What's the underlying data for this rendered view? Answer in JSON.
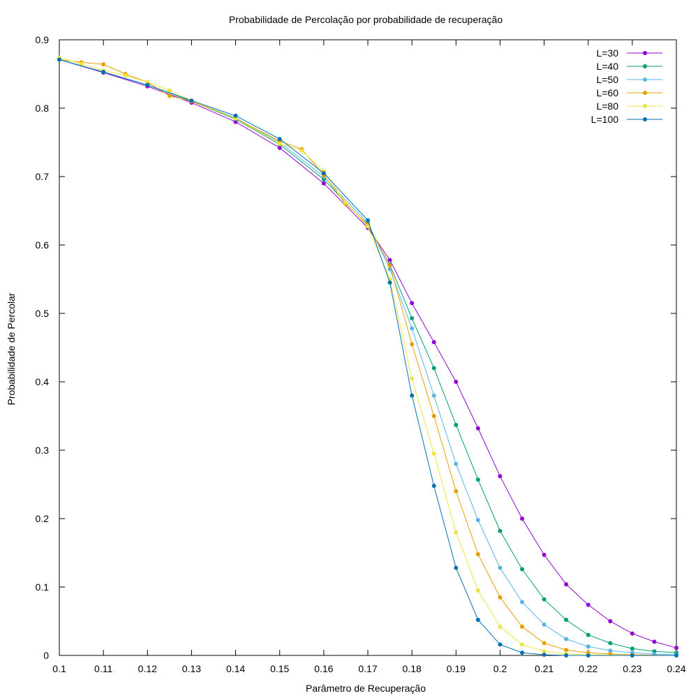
{
  "chart_data": {
    "type": "line",
    "title": "Probabilidade de Percolação por probabilidade de recuperação",
    "xlabel": "Parâmetro de Recuperação",
    "ylabel": "Probabilidade de Percolar",
    "xlim": [
      0.1,
      0.24
    ],
    "ylim": [
      0,
      0.9
    ],
    "xticks": [
      "0.1",
      "0.11",
      "0.12",
      "0.13",
      "0.14",
      "0.15",
      "0.16",
      "0.17",
      "0.18",
      "0.19",
      "0.2",
      "0.21",
      "0.22",
      "0.23",
      "0.24"
    ],
    "yticks": [
      "0",
      "0.1",
      "0.2",
      "0.3",
      "0.4",
      "0.5",
      "0.6",
      "0.7",
      "0.8",
      "0.9"
    ],
    "grid": false,
    "legend_position": "top-right",
    "series": [
      {
        "name": "L=30",
        "color": "#9400d3",
        "points": [
          [
            0.1,
            0.871
          ],
          [
            0.11,
            0.852
          ],
          [
            0.12,
            0.832
          ],
          [
            0.13,
            0.808
          ],
          [
            0.14,
            0.78
          ],
          [
            0.15,
            0.742
          ],
          [
            0.16,
            0.69
          ],
          [
            0.17,
            0.625
          ],
          [
            0.175,
            0.578
          ],
          [
            0.18,
            0.515
          ],
          [
            0.185,
            0.458
          ],
          [
            0.19,
            0.4
          ],
          [
            0.195,
            0.332
          ],
          [
            0.2,
            0.262
          ],
          [
            0.205,
            0.2
          ],
          [
            0.21,
            0.147
          ],
          [
            0.215,
            0.104
          ],
          [
            0.22,
            0.074
          ],
          [
            0.225,
            0.05
          ],
          [
            0.23,
            0.032
          ],
          [
            0.235,
            0.02
          ],
          [
            0.24,
            0.011
          ]
        ]
      },
      {
        "name": "L=40",
        "color": "#009e73",
        "points": [
          [
            0.1,
            0.871
          ],
          [
            0.11,
            0.853
          ],
          [
            0.12,
            0.834
          ],
          [
            0.13,
            0.81
          ],
          [
            0.14,
            0.784
          ],
          [
            0.15,
            0.747
          ],
          [
            0.16,
            0.696
          ],
          [
            0.17,
            0.628
          ],
          [
            0.175,
            0.571
          ],
          [
            0.18,
            0.493
          ],
          [
            0.185,
            0.42
          ],
          [
            0.19,
            0.337
          ],
          [
            0.195,
            0.257
          ],
          [
            0.2,
            0.182
          ],
          [
            0.205,
            0.126
          ],
          [
            0.21,
            0.082
          ],
          [
            0.215,
            0.052
          ],
          [
            0.22,
            0.03
          ],
          [
            0.225,
            0.018
          ],
          [
            0.23,
            0.01
          ],
          [
            0.235,
            0.006
          ],
          [
            0.24,
            0.004
          ]
        ]
      },
      {
        "name": "L=50",
        "color": "#56b4e9",
        "points": [
          [
            0.1,
            0.871
          ],
          [
            0.11,
            0.853
          ],
          [
            0.12,
            0.834
          ],
          [
            0.13,
            0.811
          ],
          [
            0.14,
            0.786
          ],
          [
            0.15,
            0.75
          ],
          [
            0.16,
            0.7
          ],
          [
            0.17,
            0.632
          ],
          [
            0.175,
            0.565
          ],
          [
            0.18,
            0.478
          ],
          [
            0.185,
            0.38
          ],
          [
            0.19,
            0.28
          ],
          [
            0.195,
            0.198
          ],
          [
            0.2,
            0.128
          ],
          [
            0.205,
            0.078
          ],
          [
            0.21,
            0.045
          ],
          [
            0.215,
            0.024
          ],
          [
            0.22,
            0.013
          ],
          [
            0.225,
            0.007
          ],
          [
            0.23,
            0.004
          ],
          [
            0.235,
            0.002
          ],
          [
            0.24,
            0.001
          ]
        ]
      },
      {
        "name": "L=60",
        "color": "#e69f00",
        "points": [
          [
            0.1,
            0.871
          ],
          [
            0.105,
            0.867
          ],
          [
            0.11,
            0.864
          ],
          [
            0.115,
            0.85
          ],
          [
            0.12,
            0.838
          ],
          [
            0.125,
            0.818
          ],
          [
            0.13,
            0.81
          ],
          [
            0.14,
            0.785
          ],
          [
            0.15,
            0.752
          ],
          [
            0.155,
            0.74
          ],
          [
            0.16,
            0.702
          ],
          [
            0.165,
            0.66
          ],
          [
            0.17,
            0.63
          ],
          [
            0.175,
            0.57
          ],
          [
            0.18,
            0.455
          ],
          [
            0.185,
            0.35
          ],
          [
            0.19,
            0.24
          ],
          [
            0.195,
            0.148
          ],
          [
            0.2,
            0.085
          ],
          [
            0.205,
            0.042
          ],
          [
            0.21,
            0.018
          ],
          [
            0.215,
            0.008
          ],
          [
            0.22,
            0.004
          ],
          [
            0.225,
            0.002
          ],
          [
            0.23,
            0.001
          ],
          [
            0.24,
            0.0
          ]
        ]
      },
      {
        "name": "L=80",
        "color": "#f0e442",
        "points": [
          [
            0.1,
            0.874
          ],
          [
            0.105,
            0.865
          ],
          [
            0.11,
            0.855
          ],
          [
            0.115,
            0.848
          ],
          [
            0.12,
            0.838
          ],
          [
            0.125,
            0.826
          ],
          [
            0.13,
            0.811
          ],
          [
            0.14,
            0.785
          ],
          [
            0.15,
            0.748
          ],
          [
            0.155,
            0.738
          ],
          [
            0.16,
            0.708
          ],
          [
            0.165,
            0.662
          ],
          [
            0.17,
            0.627
          ],
          [
            0.175,
            0.55
          ],
          [
            0.18,
            0.405
          ],
          [
            0.185,
            0.295
          ],
          [
            0.19,
            0.18
          ],
          [
            0.195,
            0.095
          ],
          [
            0.2,
            0.042
          ],
          [
            0.205,
            0.016
          ],
          [
            0.21,
            0.006
          ],
          [
            0.215,
            0.002
          ],
          [
            0.22,
            0.001
          ],
          [
            0.23,
            0.0
          ],
          [
            0.24,
            0.0
          ]
        ]
      },
      {
        "name": "L=100",
        "color": "#0072b2",
        "points": [
          [
            0.1,
            0.871
          ],
          [
            0.11,
            0.853
          ],
          [
            0.12,
            0.834
          ],
          [
            0.13,
            0.811
          ],
          [
            0.14,
            0.789
          ],
          [
            0.15,
            0.755
          ],
          [
            0.16,
            0.705
          ],
          [
            0.17,
            0.636
          ],
          [
            0.175,
            0.545
          ],
          [
            0.18,
            0.38
          ],
          [
            0.185,
            0.248
          ],
          [
            0.19,
            0.128
          ],
          [
            0.195,
            0.052
          ],
          [
            0.2,
            0.016
          ],
          [
            0.205,
            0.004
          ],
          [
            0.21,
            0.001
          ],
          [
            0.215,
            0.0
          ],
          [
            0.22,
            0.0
          ],
          [
            0.23,
            0.0
          ],
          [
            0.24,
            0.0
          ]
        ]
      }
    ]
  }
}
